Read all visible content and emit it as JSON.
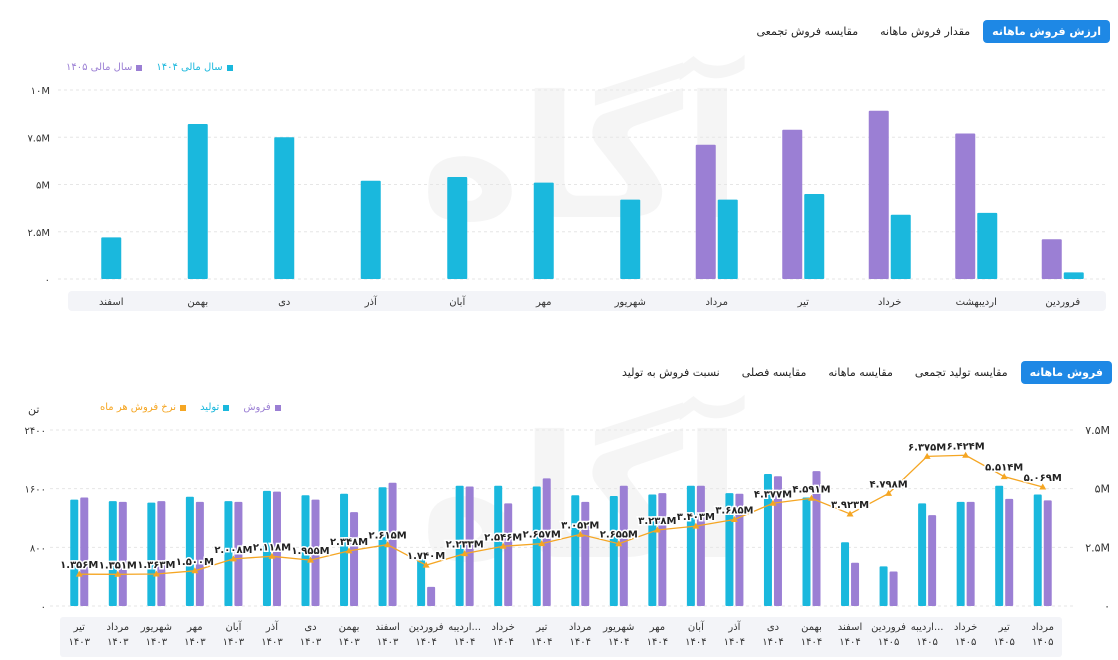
{
  "top_tabs": [
    "ارزش فروش ماهانه",
    "مقدار فروش ماهانه",
    "مقایسه فروش تجمعی"
  ],
  "bottom_tabs": [
    "فروش ماهانه",
    "مقایسه تولید تجمعی",
    "مقایسه ماهانه",
    "مقایسه فصلی",
    "نسبت فروش به تولید"
  ],
  "top_unit": "",
  "bottom_left_unit": "تن",
  "colors": {
    "cyan": "#1ab8dd",
    "purple": "#9b7fd4",
    "orange": "#f5a623",
    "accent": "#1e88e5"
  },
  "chart_data": [
    {
      "type": "bar",
      "categories": [
        "فروردین",
        "اردیبهشت",
        "خرداد",
        "تیر",
        "مرداد",
        "شهریور",
        "مهر",
        "آبان",
        "آذر",
        "دی",
        "بهمن",
        "اسفند"
      ],
      "series": [
        {
          "name": "سال مالی ۱۴۰۴",
          "color": "#1ab8dd",
          "values": [
            0.35,
            3.5,
            3.4,
            4.5,
            4.2,
            4.2,
            5.1,
            5.4,
            5.2,
            7.5,
            8.2,
            2.2
          ]
        },
        {
          "name": "سال مالی ۱۴۰۵",
          "color": "#9b7fd4",
          "values": [
            2.1,
            7.7,
            8.9,
            7.9,
            7.1,
            null,
            null,
            null,
            null,
            null,
            null,
            null
          ]
        }
      ],
      "yticks": [
        "۰",
        "۲.۵M",
        "۵M",
        "۷.۵M",
        "۱۰M"
      ],
      "ylim": [
        0,
        10
      ]
    },
    {
      "type": "bar",
      "categories": [
        [
          "تیر",
          "۱۴۰۳"
        ],
        [
          "مرداد",
          "۱۴۰۳"
        ],
        [
          "شهریور",
          "۱۴۰۳"
        ],
        [
          "مهر",
          "۱۴۰۳"
        ],
        [
          "آبان",
          "۱۴۰۳"
        ],
        [
          "آذر",
          "۱۴۰۳"
        ],
        [
          "دی",
          "۱۴۰۳"
        ],
        [
          "بهمن",
          "۱۴۰۳"
        ],
        [
          "اسفند",
          "۱۴۰۳"
        ],
        [
          "فروردین",
          "۱۴۰۴"
        ],
        [
          "اردیبه...",
          "۱۴۰۴"
        ],
        [
          "خرداد",
          "۱۴۰۴"
        ],
        [
          "تیر",
          "۱۴۰۴"
        ],
        [
          "مرداد",
          "۱۴۰۴"
        ],
        [
          "شهریور",
          "۱۴۰۴"
        ],
        [
          "مهر",
          "۱۴۰۴"
        ],
        [
          "آبان",
          "۱۴۰۴"
        ],
        [
          "آذر",
          "۱۴۰۴"
        ],
        [
          "دی",
          "۱۴۰۴"
        ],
        [
          "بهمن",
          "۱۴۰۴"
        ],
        [
          "اسفند",
          "۱۴۰۴"
        ],
        [
          "فروردین",
          "۱۴۰۵"
        ],
        [
          "اردیبه...",
          "۱۴۰۵"
        ],
        [
          "خرداد",
          "۱۴۰۵"
        ],
        [
          "تیر",
          "۱۴۰۵"
        ],
        [
          "مرداد",
          "۱۴۰۵"
        ]
      ],
      "series": [
        {
          "name": "فروش",
          "color": "#9b7fd4",
          "values": [
            1480,
            1420,
            1430,
            1420,
            1420,
            1560,
            1450,
            1280,
            1680,
            260,
            1630,
            1400,
            1740,
            1420,
            1640,
            1540,
            1640,
            1530,
            1770,
            1840,
            590,
            470,
            1240,
            1420,
            1460,
            1440
          ]
        },
        {
          "name": "تولید",
          "color": "#1ab8dd",
          "values": [
            1450,
            1430,
            1410,
            1490,
            1430,
            1570,
            1510,
            1530,
            1620,
            640,
            1640,
            1640,
            1630,
            1510,
            1500,
            1520,
            1640,
            1540,
            1800,
            1480,
            870,
            540,
            1400,
            1420,
            1640,
            1520
          ]
        },
        {
          "name": "نرخ فروش هر ماه",
          "color": "#f5a623",
          "type": "line",
          "axis": "right",
          "values": [
            1.356,
            1.351,
            1.363,
            1.5,
            2.008,
            2.118,
            1.955,
            2.348,
            2.615,
            1.74,
            2.233,
            2.546,
            2.657,
            3.052,
            2.655,
            3.238,
            3.403,
            3.685,
            4.377,
            4.591,
            3.923,
            4.798,
            6.375,
            6.424,
            5.514,
            5.069
          ],
          "labels": [
            "۱.۳۵۶M",
            "۱.۳۵۱M",
            "۱.۳۶۳M",
            "۱.۵۰۰M",
            "۲.۰۰۸M",
            "۲.۱۱۸M",
            "۱.۹۵۵M",
            "۲.۳۴۸M",
            "۲.۶۱۵M",
            "۱.۷۴۰M",
            "۲.۲۳۳M",
            "۲.۵۴۶M",
            "۲.۶۵۷M",
            "۳.۰۵۲M",
            "۲.۶۵۵M",
            "۳.۲۳۸M",
            "۳.۴۰۳M",
            "۳.۶۸۵M",
            "۴.۳۷۷M",
            "۴.۵۹۱M",
            "۳.۹۲۳M",
            "۴.۷۹۸M",
            "۶.۳۷۵M",
            "۶.۴۲۴M",
            "۵.۵۱۴M",
            "۵.۰۶۹M"
          ]
        }
      ],
      "yticks_left": [
        "۰",
        "۸۰۰",
        "۱۶۰۰",
        "۲۴۰۰"
      ],
      "ylim_left": [
        0,
        2400
      ],
      "yticks_right": [
        "۰",
        "۲.۵M",
        "۵M",
        "۷.۵M"
      ],
      "ylim_right": [
        0,
        7.5
      ]
    }
  ]
}
